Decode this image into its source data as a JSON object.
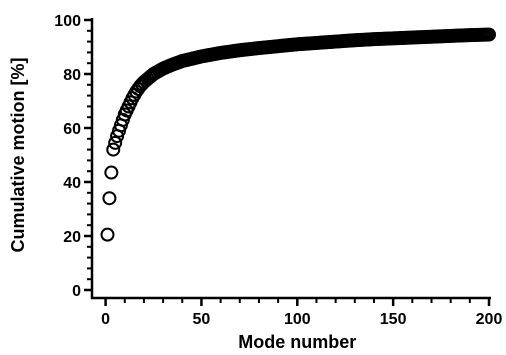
{
  "chart_data": {
    "type": "scatter",
    "title": "",
    "xlabel": "Mode number",
    "ylabel": "Cumulative motion [%]",
    "xlim": [
      -5,
      200
    ],
    "ylim": [
      0,
      100
    ],
    "x_ticks": [
      "0",
      "50",
      "100",
      "150",
      "200"
    ],
    "y_ticks": [
      "0",
      "20",
      "40",
      "60",
      "80",
      "100"
    ],
    "grid": false,
    "legend": "none",
    "marker": "open-circle",
    "color": "#000000",
    "series": [
      {
        "x": [
          1,
          2,
          3,
          4,
          5,
          6,
          7,
          8,
          9,
          10,
          12,
          14,
          16,
          18,
          20,
          25,
          30,
          35,
          40,
          50,
          60,
          70,
          80,
          90,
          100,
          110,
          120,
          130,
          140,
          150,
          160,
          170,
          180,
          190,
          200
        ],
        "values": [
          20.5,
          34,
          43.5,
          52,
          54.5,
          57,
          59,
          61,
          63,
          65,
          68,
          71,
          73.5,
          75.5,
          77,
          80,
          82,
          83.5,
          84.8,
          86.5,
          87.8,
          88.8,
          89.6,
          90.3,
          91,
          91.5,
          92,
          92.5,
          92.9,
          93.2,
          93.5,
          93.8,
          94.1,
          94.4,
          94.6
        ]
      }
    ]
  }
}
